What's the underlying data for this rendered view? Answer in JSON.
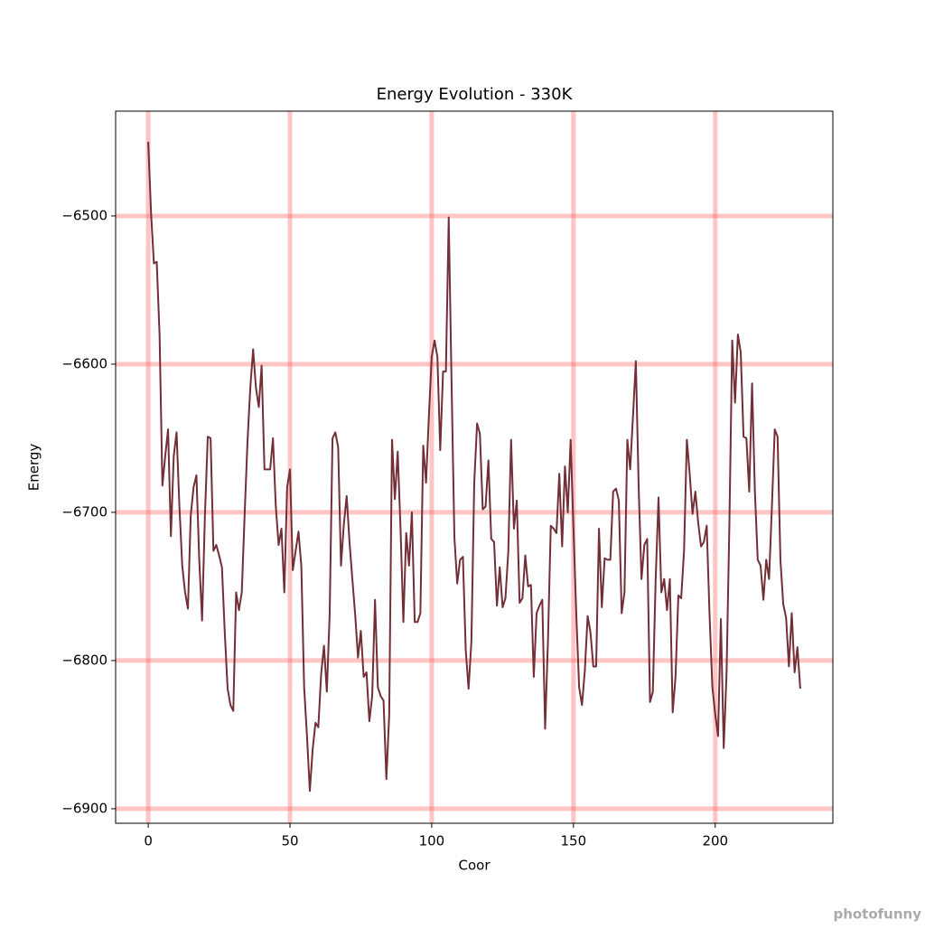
{
  "chart_data": {
    "type": "line",
    "title": "Energy Evolution - 330K",
    "x_label": "Coor",
    "y_label": "Energy",
    "watermark": "photofunny",
    "xlim": [
      -11.5,
      241.5
    ],
    "ylim": [
      -6909.8,
      -6429.3
    ],
    "xticks": [
      0,
      50,
      100,
      150,
      200
    ],
    "yticks": [
      {
        "value": -6500,
        "label": "−6500"
      },
      {
        "value": -6600,
        "label": "−6600"
      },
      {
        "value": -6700,
        "label": "−6700"
      },
      {
        "value": -6800,
        "label": "−6800"
      },
      {
        "value": -6900,
        "label": "−6900"
      }
    ],
    "grid": true,
    "grid_color": "#ff6b6b",
    "x": [
      0,
      1,
      2,
      3,
      4,
      5,
      6,
      7,
      8,
      9,
      10,
      11,
      12,
      13,
      14,
      15,
      16,
      17,
      18,
      19,
      20,
      21,
      22,
      23,
      24,
      25,
      26,
      27,
      28,
      29,
      30,
      31,
      32,
      33,
      34,
      35,
      36,
      37,
      38,
      39,
      40,
      41,
      42,
      43,
      44,
      45,
      46,
      47,
      48,
      49,
      50,
      51,
      52,
      53,
      54,
      55,
      56,
      57,
      58,
      59,
      60,
      61,
      62,
      63,
      64,
      65,
      66,
      67,
      68,
      69,
      70,
      71,
      72,
      73,
      74,
      75,
      76,
      77,
      78,
      79,
      80,
      81,
      82,
      83,
      84,
      85,
      86,
      87,
      88,
      89,
      90,
      91,
      92,
      93,
      94,
      95,
      96,
      97,
      98,
      99,
      100,
      101,
      102,
      103,
      104,
      105,
      106,
      107,
      108,
      109,
      110,
      111,
      112,
      113,
      114,
      115,
      116,
      117,
      118,
      119,
      120,
      121,
      122,
      123,
      124,
      125,
      126,
      127,
      128,
      129,
      130,
      131,
      132,
      133,
      134,
      135,
      136,
      137,
      138,
      139,
      140,
      141,
      142,
      143,
      144,
      145,
      146,
      147,
      148,
      149,
      150,
      151,
      152,
      153,
      154,
      155,
      156,
      157,
      158,
      159,
      160,
      161,
      162,
      163,
      164,
      165,
      166,
      167,
      168,
      169,
      170,
      171,
      172,
      173,
      174,
      175,
      176,
      177,
      178,
      179,
      180,
      181,
      182,
      183,
      184,
      185,
      186,
      187,
      188,
      189,
      190,
      191,
      192,
      193,
      194,
      195,
      196,
      197,
      198,
      199,
      200,
      201,
      202,
      203,
      204,
      205,
      206,
      207,
      208,
      209,
      210,
      211,
      212,
      213,
      214,
      215,
      216,
      217,
      218,
      219,
      220,
      221,
      222,
      223,
      224,
      225,
      226,
      227,
      228,
      229,
      230
    ],
    "series": [
      {
        "color": "#722f37",
        "values": [
          -6450,
          -6498,
          -6532,
          -6531,
          -6580,
          -6682,
          -6662,
          -6644,
          -6716,
          -6662,
          -6646,
          -6696,
          -6736,
          -6754,
          -6765,
          -6702,
          -6683,
          -6675,
          -6732,
          -6773,
          -6702,
          -6649,
          -6650,
          -6726,
          -6722,
          -6729,
          -6737,
          -6781,
          -6819,
          -6830,
          -6834,
          -6754,
          -6766,
          -6754,
          -6702,
          -6653,
          -6616,
          -6590,
          -6616,
          -6629,
          -6601,
          -6671,
          -6671,
          -6671,
          -6650,
          -6696,
          -6722,
          -6711,
          -6754,
          -6683,
          -6671,
          -6739,
          -6726,
          -6713,
          -6736,
          -6818,
          -6851,
          -6888,
          -6860,
          -6842,
          -6845,
          -6809,
          -6790,
          -6821,
          -6769,
          -6650,
          -6646,
          -6656,
          -6736,
          -6708,
          -6689,
          -6720,
          -6745,
          -6769,
          -6798,
          -6780,
          -6811,
          -6808,
          -6841,
          -6824,
          -6759,
          -6818,
          -6824,
          -6827,
          -6880,
          -6837,
          -6651,
          -6691,
          -6659,
          -6711,
          -6774,
          -6714,
          -6736,
          -6700,
          -6774,
          -6774,
          -6768,
          -6655,
          -6680,
          -6635,
          -6595,
          -6584,
          -6595,
          -6658,
          -6605,
          -6605,
          -6501,
          -6613,
          -6717,
          -6748,
          -6732,
          -6730,
          -6793,
          -6819,
          -6787,
          -6680,
          -6640,
          -6647,
          -6698,
          -6696,
          -6665,
          -6718,
          -6720,
          -6763,
          -6737,
          -6764,
          -6758,
          -6727,
          -6651,
          -6711,
          -6692,
          -6761,
          -6758,
          -6729,
          -6750,
          -6749,
          -6811,
          -6768,
          -6763,
          -6759,
          -6846,
          -6787,
          -6709,
          -6711,
          -6714,
          -6674,
          -6723,
          -6669,
          -6700,
          -6651,
          -6711,
          -6769,
          -6818,
          -6830,
          -6807,
          -6770,
          -6781,
          -6804,
          -6804,
          -6711,
          -6764,
          -6731,
          -6732,
          -6732,
          -6686,
          -6684,
          -6692,
          -6768,
          -6754,
          -6651,
          -6671,
          -6635,
          -6598,
          -6683,
          -6745,
          -6722,
          -6718,
          -6828,
          -6821,
          -6745,
          -6690,
          -6754,
          -6745,
          -6766,
          -6745,
          -6835,
          -6811,
          -6756,
          -6758,
          -6726,
          -6651,
          -6674,
          -6701,
          -6686,
          -6707,
          -6723,
          -6720,
          -6709,
          -6769,
          -6818,
          -6836,
          -6851,
          -6772,
          -6859,
          -6809,
          -6708,
          -6584,
          -6626,
          -6580,
          -6592,
          -6649,
          -6650,
          -6686,
          -6613,
          -6686,
          -6732,
          -6736,
          -6759,
          -6732,
          -6745,
          -6696,
          -6644,
          -6649,
          -6732,
          -6762,
          -6771,
          -6804,
          -6768,
          -6808,
          -6791,
          -6819
        ]
      }
    ]
  }
}
